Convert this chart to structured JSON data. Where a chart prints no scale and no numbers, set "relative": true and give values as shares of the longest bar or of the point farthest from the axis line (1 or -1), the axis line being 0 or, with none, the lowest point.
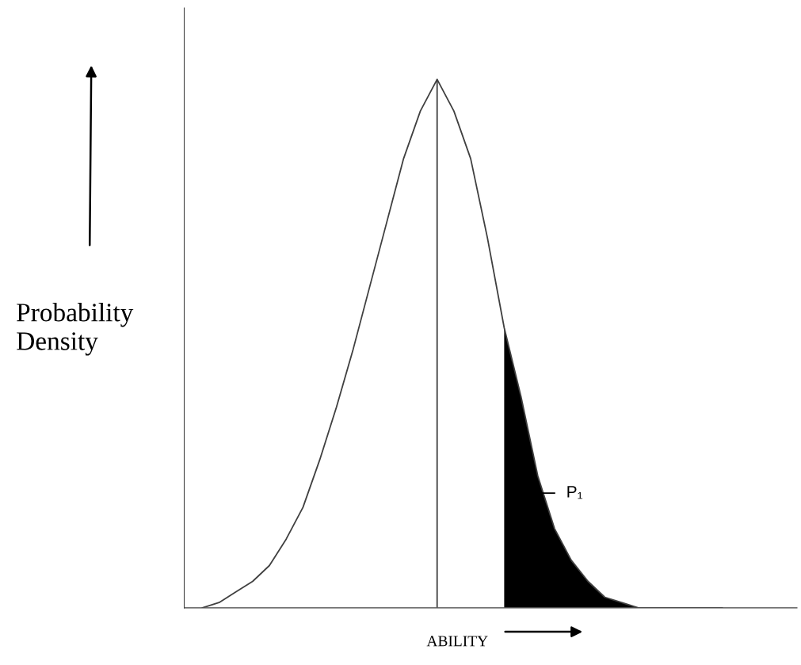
{
  "chart_data": {
    "type": "line",
    "relative": true,
    "xlabel": "ABILITY",
    "ylabel": "Probability\nDensity",
    "categories": [
      null,
      null,
      null,
      null,
      null,
      null,
      null,
      null,
      null,
      null,
      null,
      null,
      null,
      null,
      null,
      null,
      null,
      null,
      null,
      null,
      null,
      null,
      null,
      null,
      null,
      null,
      null,
      null,
      null,
      null,
      null,
      null
    ],
    "series": [
      {
        "color": "#404040",
        "values": [
          0.0,
          0.01,
          0.03,
          0.05,
          0.08,
          0.13,
          0.19,
          0.28,
          0.38,
          0.49,
          0.61,
          0.73,
          0.85,
          0.94,
          1.0,
          0.94,
          0.85,
          0.7,
          0.53,
          0.4,
          0.25,
          0.15,
          0.09,
          0.05,
          0.02,
          0.01,
          0.0,
          0.0,
          0.0,
          0.0,
          0.0,
          0.0
        ]
      },
      {
        "type": "area",
        "color": "#000000",
        "values": [
          null,
          null,
          null,
          null,
          null,
          null,
          null,
          null,
          null,
          null,
          null,
          null,
          null,
          null,
          null,
          null,
          null,
          null,
          0.53,
          0.4,
          0.25,
          0.15,
          0.09,
          0.05,
          0.02,
          0.01,
          0.0,
          0.0,
          0.0,
          0.0,
          0.0,
          0.0
        ]
      }
    ],
    "annotations": [
      "P₁"
    ]
  }
}
